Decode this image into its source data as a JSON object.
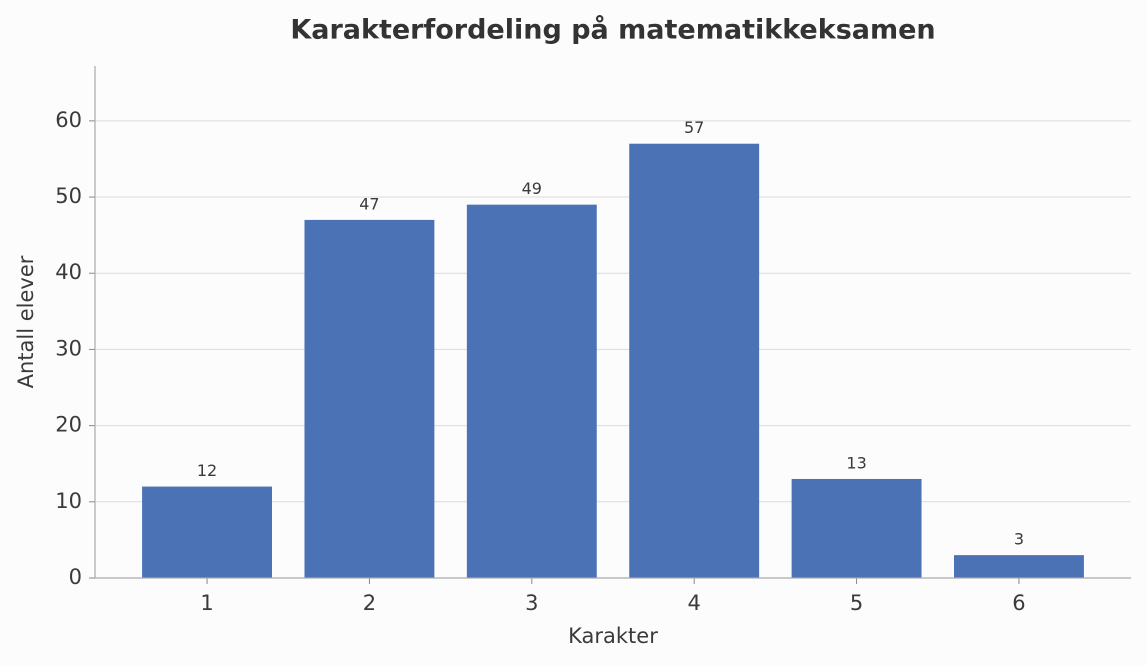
{
  "chart_data": {
    "type": "bar",
    "title": "Karakterfordeling på matematikkeksamen",
    "x_label": "Karakter",
    "y_label": "Antall elever",
    "categories": [
      "1",
      "2",
      "3",
      "4",
      "5",
      "6"
    ],
    "values": [
      12,
      47,
      49,
      57,
      13,
      3
    ],
    "color": "#4a72b5",
    "ylim": [
      0,
      67.2
    ],
    "yticks": [
      0,
      10,
      20,
      30,
      40,
      50,
      60
    ],
    "grid": true
  }
}
